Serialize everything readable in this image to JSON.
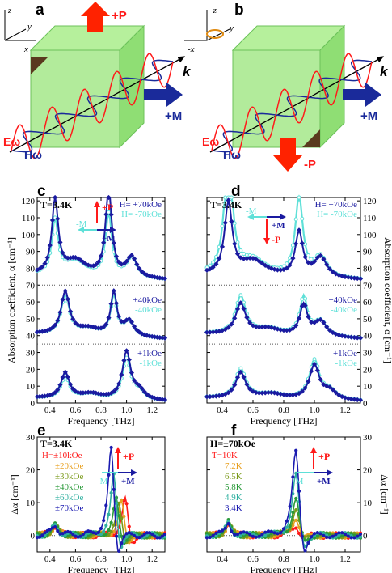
{
  "panels": {
    "a": "a",
    "b": "b",
    "c": "c",
    "d": "d",
    "e": "e",
    "f": "f"
  },
  "colors": {
    "dark": "#1a1aa0",
    "cyan": "#5fe0d8",
    "red": "#ff1a1a",
    "green": "#7ed36a",
    "orange": "#e8a020",
    "olive": "#7a9a1a",
    "grn2": "#2a9a3a",
    "teal": "#30b0a0",
    "blue": "#1a1ab0"
  },
  "diagram": {
    "a": {
      "axes": [
        "z",
        "y",
        "x"
      ],
      "k": "k",
      "P": "+P",
      "M": "+M",
      "E": "Eω",
      "H": "Hω"
    },
    "b": {
      "axes": [
        "-z",
        "y",
        "-x"
      ],
      "k": "k",
      "P": "-P",
      "M": "+M",
      "E": "Eω",
      "H": "Hω"
    }
  },
  "chart_data": [
    {
      "panel": "c",
      "type": "line",
      "temperature": "T=3.4K",
      "xlabel": "Frequency [THz]",
      "ylabel": "Absorption coefficient, α [cm⁻¹]",
      "xlim": [
        0.3,
        1.3
      ],
      "xticks": [
        "0.4",
        "0.6",
        "0.8",
        "1.0",
        "1.2"
      ],
      "yticks_left": [
        "0",
        "10",
        "20",
        "30",
        "40",
        "50",
        "60",
        "70",
        "80",
        "90",
        "100",
        "110",
        "120"
      ],
      "arrows": {
        "P": "+P",
        "M_neg": "-M",
        "M_pos": "+M"
      },
      "field_labels": [
        {
          "dark": "H= +70kOe",
          "cyan": "H= -70kOe"
        },
        {
          "dark": "+40kOe",
          "cyan": "-40kOe"
        },
        {
          "dark": "+1kOe",
          "cyan": "-1kOe"
        }
      ],
      "curves": [
        {
          "offset": 70,
          "peaks": [
            [
              0.44,
              44,
              0.03
            ],
            [
              0.6,
              9,
              0.1
            ],
            [
              0.86,
              51,
              0.03
            ],
            [
              1.04,
              12,
              0.05
            ]
          ],
          "dark_scale": 1.0,
          "cyan_scale": 0.72,
          "base": [
            6,
            3
          ]
        },
        {
          "offset": 35,
          "peaks": [
            [
              0.52,
              25,
              0.04
            ],
            [
              0.7,
              4,
              0.1
            ],
            [
              0.9,
              25,
              0.03
            ],
            [
              1.02,
              9,
              0.05
            ]
          ],
          "dark_scale": 1.0,
          "cyan_scale": 0.92,
          "base": [
            6,
            3
          ]
        },
        {
          "offset": 0,
          "peaks": [
            [
              0.52,
              15,
              0.04
            ],
            [
              0.72,
              3,
              0.1
            ],
            [
              1.0,
              28,
              0.04
            ],
            [
              1.1,
              5,
              0.05
            ]
          ],
          "dark_scale": 1.0,
          "cyan_scale": 0.85,
          "base": [
            3,
            2
          ]
        }
      ]
    },
    {
      "panel": "d",
      "type": "line",
      "temperature": "T=3.4K",
      "xlabel": "Frequency [THz]",
      "ylabel": "Absorption coefficient, α [cm⁻¹]",
      "xlim": [
        0.3,
        1.3
      ],
      "xticks": [
        "0.4",
        "0.6",
        "0.8",
        "1.0",
        "1.2"
      ],
      "yticks_right": [
        "0",
        "10",
        "20",
        "30",
        "40",
        "50",
        "60",
        "70",
        "80",
        "90",
        "100",
        "110",
        "120"
      ],
      "arrows": {
        "P": "-P",
        "M_neg": "-M",
        "M_pos": "+M"
      },
      "field_labels": [
        {
          "dark": "H= +70kOe",
          "cyan": "H= -70kOe"
        },
        {
          "dark": "+40kOe",
          "cyan": "-40kOe"
        },
        {
          "dark": "+1kOe",
          "cyan": "-1kOe"
        }
      ],
      "curves": [
        {
          "offset": 70,
          "peaks": [
            [
              0.44,
              42,
              0.03
            ],
            [
              0.6,
              9,
              0.1
            ],
            [
              0.9,
              26,
              0.03
            ],
            [
              1.04,
              12,
              0.05
            ]
          ],
          "dark_scale": 1.0,
          "cyan_scale": 1.8,
          "base": [
            6,
            3
          ]
        },
        {
          "offset": 35,
          "peaks": [
            [
              0.52,
              18,
              0.04
            ],
            [
              0.7,
              4,
              0.1
            ],
            [
              0.93,
              18,
              0.03
            ],
            [
              1.04,
              9,
              0.05
            ]
          ],
          "dark_scale": 1.0,
          "cyan_scale": 1.25,
          "base": [
            6,
            3
          ]
        },
        {
          "offset": 0,
          "peaks": [
            [
              0.52,
              15,
              0.04
            ],
            [
              0.72,
              3,
              0.1
            ],
            [
              1.0,
              20,
              0.04
            ],
            [
              1.1,
              5,
              0.05
            ]
          ],
          "dark_scale": 1.0,
          "cyan_scale": 1.15,
          "base": [
            3,
            2
          ]
        }
      ]
    },
    {
      "panel": "e",
      "type": "line",
      "temperature": "T=3.4K",
      "xlabel": "Frequency [THz]",
      "ylabel": "Δα [cm⁻¹]",
      "xlim": [
        0.3,
        1.3
      ],
      "ylim": [
        -5,
        30
      ],
      "xticks": [
        "0.4",
        "0.6",
        "0.8",
        "1.0",
        "1.2"
      ],
      "yticks": [
        "0",
        "10",
        "20",
        "30"
      ],
      "arrows": {
        "P": "+P",
        "M_neg": "-M",
        "M_pos": "+M"
      },
      "series": [
        {
          "name": "H=±10kOe",
          "color": "#ff1a1a",
          "peak": [
            0.99,
            12
          ]
        },
        {
          "name": "±20kOe",
          "color": "#e8a020",
          "peak": [
            0.96,
            11
          ]
        },
        {
          "name": "±30kOe",
          "color": "#7a9a1a",
          "peak": [
            0.94,
            10
          ]
        },
        {
          "name": "±40kOe",
          "color": "#2a9a3a",
          "peak": [
            0.92,
            12
          ]
        },
        {
          "name": "±60kOe",
          "color": "#30b0a0",
          "peak": [
            0.9,
            20
          ]
        },
        {
          "name": "±70kOe",
          "color": "#1a1ab0",
          "peak": [
            0.88,
            29
          ]
        }
      ]
    },
    {
      "panel": "f",
      "type": "line",
      "temperature": "H=±70kOe",
      "xlabel": "Frequency [THz]",
      "ylabel": "Δα [cm⁻¹]",
      "xlim": [
        0.3,
        1.3
      ],
      "ylim": [
        -5,
        30
      ],
      "xticks": [
        "0.4",
        "0.6",
        "0.8",
        "1.0",
        "1.2"
      ],
      "yticks": [
        "0",
        "10",
        "20",
        "30"
      ],
      "arrows": {
        "P": "+P",
        "M_neg": "-M",
        "M_pos": "+M"
      },
      "series": [
        {
          "name": "T=10K",
          "color": "#ff1a1a",
          "peak": [
            0.88,
            3
          ]
        },
        {
          "name": "7.2K",
          "color": "#e8a020",
          "peak": [
            0.88,
            6
          ]
        },
        {
          "name": "6.5K",
          "color": "#7a9a1a",
          "peak": [
            0.88,
            9
          ]
        },
        {
          "name": "5.8K",
          "color": "#2a9a3a",
          "peak": [
            0.88,
            12
          ]
        },
        {
          "name": "4.9K",
          "color": "#30b0a0",
          "peak": [
            0.88,
            20
          ]
        },
        {
          "name": "3.4K",
          "color": "#1a1ab0",
          "peak": [
            0.88,
            28
          ]
        }
      ]
    }
  ]
}
